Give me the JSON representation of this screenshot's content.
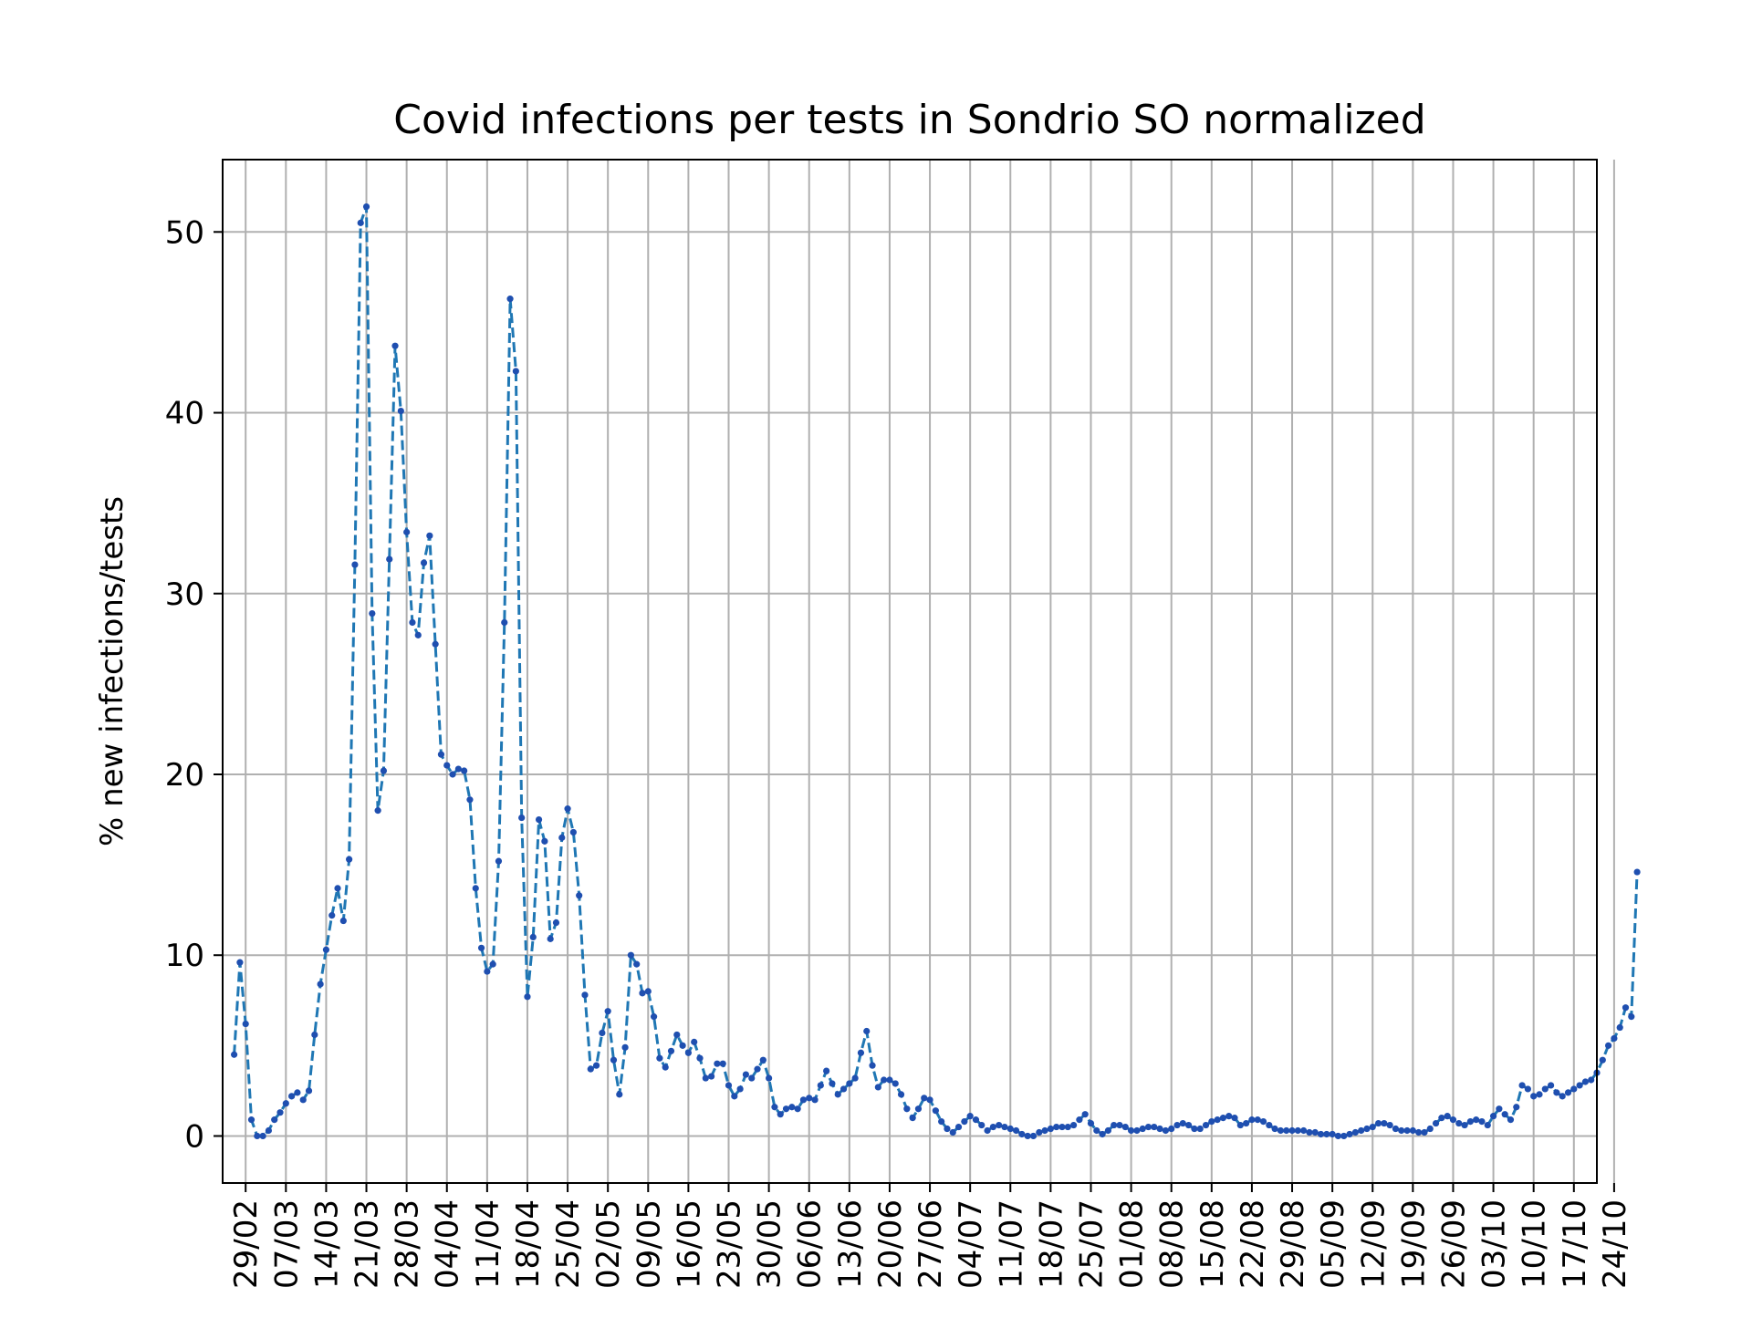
{
  "chart_data": {
    "type": "line",
    "title": "Covid infections per tests in Sondrio SO normalized",
    "xlabel": "",
    "ylabel": "% new infections/tests",
    "x_tick_labels": [
      "29/02",
      "07/03",
      "14/03",
      "21/03",
      "28/03",
      "04/04",
      "11/04",
      "18/04",
      "25/04",
      "02/05",
      "09/05",
      "16/05",
      "23/05",
      "30/05",
      "06/06",
      "13/06",
      "20/06",
      "27/06",
      "04/07",
      "11/07",
      "18/07",
      "25/07",
      "01/08",
      "08/08",
      "15/08",
      "22/08",
      "29/08",
      "05/09",
      "12/09",
      "19/09",
      "26/09",
      "03/10",
      "10/10",
      "17/10",
      "24/10"
    ],
    "y_ticks": [
      0,
      10,
      20,
      30,
      40,
      50
    ],
    "y_tick_labels": [
      "0",
      "10",
      "20",
      "30",
      "40",
      "50"
    ],
    "xlim": [
      -2,
      237
    ],
    "ylim": [
      -2.6,
      54
    ],
    "grid": true,
    "colors": {
      "line": "#1f77b4",
      "marker": "#1f4fb0",
      "grid": "#b0b0b0"
    },
    "series": [
      {
        "start_date": "27/02",
        "values": [
          4.5,
          9.6,
          6.2,
          0.9,
          0,
          0,
          0.3,
          0.9,
          1.3,
          1.8,
          2.2,
          2.4,
          2.0,
          2.5,
          5.6,
          8.4,
          10.3,
          12.2,
          13.7,
          11.9,
          15.3,
          31.6,
          50.5,
          51.4,
          28.9,
          18.0,
          20.2,
          31.9,
          43.7,
          40.1,
          33.4,
          28.4,
          27.7,
          31.7,
          33.2,
          27.2,
          21.1,
          20.5,
          20.0,
          20.3,
          20.2,
          18.6,
          13.7,
          10.4,
          9.1,
          9.5,
          15.2,
          28.4,
          46.3,
          42.3,
          17.6,
          7.7,
          11.0,
          17.5,
          16.3,
          10.9,
          11.8,
          16.5,
          18.1,
          16.8,
          13.3,
          7.8,
          3.7,
          3.9,
          5.7,
          6.9,
          4.2,
          2.3,
          4.9,
          10.0,
          9.5,
          7.9,
          8.0,
          6.6,
          4.3,
          3.8,
          4.7,
          5.6,
          5.0,
          4.6,
          5.2,
          4.3,
          3.2,
          3.3,
          4.0,
          4.0,
          2.8,
          2.2,
          2.6,
          3.4,
          3.2,
          3.7,
          4.2,
          3.2,
          1.6,
          1.2,
          1.5,
          1.6,
          1.5,
          2.0,
          2.1,
          2.0,
          2.8,
          3.6,
          2.9,
          2.3,
          2.6,
          2.9,
          3.2,
          4.6,
          5.8,
          3.9,
          2.7,
          3.1,
          3.1,
          2.9,
          2.3,
          1.5,
          1.0,
          1.5,
          2.1,
          2.0,
          1.4,
          0.8,
          0.4,
          0.2,
          0.5,
          0.8,
          1.1,
          0.9,
          0.6,
          0.3,
          0.5,
          0.6,
          0.5,
          0.4,
          0.3,
          0.1,
          0.0,
          0.0,
          0.2,
          0.3,
          0.4,
          0.5,
          0.5,
          0.5,
          0.6,
          0.9,
          1.2,
          0.7,
          0.3,
          0.1,
          0.3,
          0.6,
          0.6,
          0.5,
          0.3,
          0.3,
          0.4,
          0.5,
          0.5,
          0.4,
          0.3,
          0.4,
          0.6,
          0.7,
          0.6,
          0.4,
          0.4,
          0.6,
          0.8,
          0.9,
          1.0,
          1.1,
          1.0,
          0.6,
          0.7,
          0.9,
          0.9,
          0.8,
          0.6,
          0.4,
          0.3,
          0.3,
          0.3,
          0.3,
          0.3,
          0.2,
          0.2,
          0.1,
          0.1,
          0.1,
          0.0,
          0.0,
          0.1,
          0.2,
          0.3,
          0.4,
          0.5,
          0.7,
          0.7,
          0.6,
          0.4,
          0.3,
          0.3,
          0.3,
          0.2,
          0.2,
          0.4,
          0.7,
          1.0,
          1.1,
          0.9,
          0.7,
          0.6,
          0.8,
          0.9,
          0.8,
          0.6,
          1.1,
          1.5,
          1.2,
          0.9,
          1.6,
          2.8,
          2.6,
          2.2,
          2.3,
          2.6,
          2.8,
          2.4,
          2.2,
          2.4,
          2.6,
          2.8,
          3.0,
          3.1,
          3.5,
          4.2,
          5.0,
          5.4,
          6.0,
          7.1,
          6.6,
          14.6
        ]
      }
    ]
  }
}
